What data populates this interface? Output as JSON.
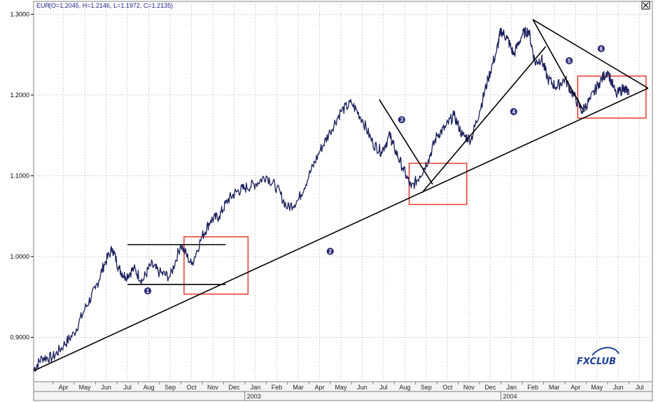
{
  "header": {
    "symbol": "EUR",
    "ohlc": "(O=1.2045, H=1.2146, L=1.1972, C=1.2135)"
  },
  "logo_text": "FXCLUB",
  "chart_data": {
    "type": "line",
    "title": "",
    "xlabel": "",
    "ylabel": "",
    "ylim": [
      0.845,
      1.316
    ],
    "yticks": [
      {
        "value": 0.9,
        "label": "0.9000"
      },
      {
        "value": 1.0,
        "label": "1.0000"
      },
      {
        "value": 1.1,
        "label": "1.1000"
      },
      {
        "value": 1.2,
        "label": "1.2000"
      },
      {
        "value": 1.3,
        "label": "1.3000"
      }
    ],
    "x_unit": "month index (0 = start of Apr 2002)",
    "xlim": [
      -0.9,
      28.1
    ],
    "month_labels": [
      "Apr",
      "May",
      "Jun",
      "Jul",
      "Aug",
      "Sep",
      "Oct",
      "Nov",
      "Dec",
      "Jan",
      "Feb",
      "Mar",
      "Apr",
      "May",
      "Jun",
      "Jul",
      "Aug",
      "Sep",
      "Oct",
      "Nov",
      "Dec",
      "Jan",
      "Feb",
      "Mar",
      "Apr",
      "May",
      "Jun",
      "Jul"
    ],
    "year_labels": [
      {
        "label": "2003",
        "month": 9
      },
      {
        "label": "2004",
        "month": 21
      }
    ],
    "series": [
      {
        "x": [
          -0.9,
          -0.5,
          0,
          0.5,
          1,
          1.5,
          2,
          2.4,
          2.8,
          3.1,
          3.4,
          3.8,
          4.2,
          4.6,
          5,
          5.5,
          6,
          6.5,
          7,
          7.4,
          7.8,
          8.2,
          8.6,
          9,
          9.5,
          10,
          10.5,
          11,
          11.5,
          12,
          12.5,
          13,
          13.5,
          14,
          14.5,
          15,
          15.4,
          15.8,
          16,
          16.4,
          16.8,
          17.2,
          17.6,
          18,
          18.4,
          18.8,
          19.2,
          19.6,
          20,
          20.4,
          20.8,
          21,
          21.3,
          21.6,
          22,
          22.3,
          22.6,
          22.9,
          23.2,
          23.6,
          24,
          24.4,
          24.8,
          25.2,
          25.6,
          26,
          26.4,
          26.8,
          27.0
        ],
        "y": [
          0.86,
          0.875,
          0.875,
          0.89,
          0.905,
          0.935,
          0.96,
          0.99,
          1.01,
          0.985,
          0.975,
          0.985,
          0.97,
          0.99,
          0.98,
          0.975,
          1.015,
          0.99,
          1.025,
          1.045,
          1.05,
          1.07,
          1.08,
          1.085,
          1.09,
          1.1,
          1.085,
          1.06,
          1.07,
          1.1,
          1.13,
          1.155,
          1.18,
          1.19,
          1.17,
          1.14,
          1.13,
          1.15,
          1.135,
          1.11,
          1.085,
          1.1,
          1.12,
          1.15,
          1.16,
          1.175,
          1.15,
          1.145,
          1.18,
          1.22,
          1.255,
          1.28,
          1.27,
          1.25,
          1.275,
          1.28,
          1.24,
          1.245,
          1.22,
          1.21,
          1.22,
          1.2,
          1.18,
          1.195,
          1.215,
          1.23,
          1.2,
          1.21,
          1.2
        ]
      }
    ],
    "annotations": [
      {
        "label": "1",
        "x": 4.45,
        "y": 0.9575
      },
      {
        "label": "2",
        "x": 13.0,
        "y": 1.0065
      },
      {
        "label": "3",
        "x": 16.35,
        "y": 1.1695
      },
      {
        "label": "4",
        "x": 21.6,
        "y": 1.1795
      },
      {
        "label": "5",
        "x": 24.2,
        "y": 1.2425
      },
      {
        "label": "6",
        "x": 25.7,
        "y": 1.2575
      }
    ],
    "trendlines": [
      {
        "from": [
          -0.9,
          0.8585
        ],
        "to": [
          27.9,
          1.2085
        ]
      },
      {
        "from": [
          3.5,
          1.0148
        ],
        "to": [
          8.1,
          1.0148
        ]
      },
      {
        "from": [
          3.5,
          0.9655
        ],
        "to": [
          8.1,
          0.9655
        ]
      },
      {
        "from": [
          15.3,
          1.1945
        ],
        "to": [
          17.8,
          1.0895
        ]
      },
      {
        "from": [
          17.3,
          1.079
        ],
        "to": [
          23.1,
          1.26
        ]
      },
      {
        "from": [
          22.5,
          1.2935
        ],
        "to": [
          24.9,
          1.1795
        ]
      },
      {
        "from": [
          22.5,
          1.2935
        ],
        "to": [
          27.9,
          1.2085
        ]
      }
    ],
    "highlight_boxes": [
      {
        "x0": 6.15,
        "x1": 9.15,
        "y0": 0.9535,
        "y1": 1.0245
      },
      {
        "x0": 16.7,
        "x1": 19.4,
        "y0": 1.0645,
        "y1": 1.1155
      },
      {
        "x0": 24.6,
        "x1": 27.8,
        "y0": 1.1715,
        "y1": 1.2235
      }
    ],
    "grid": true,
    "legend": "none"
  }
}
